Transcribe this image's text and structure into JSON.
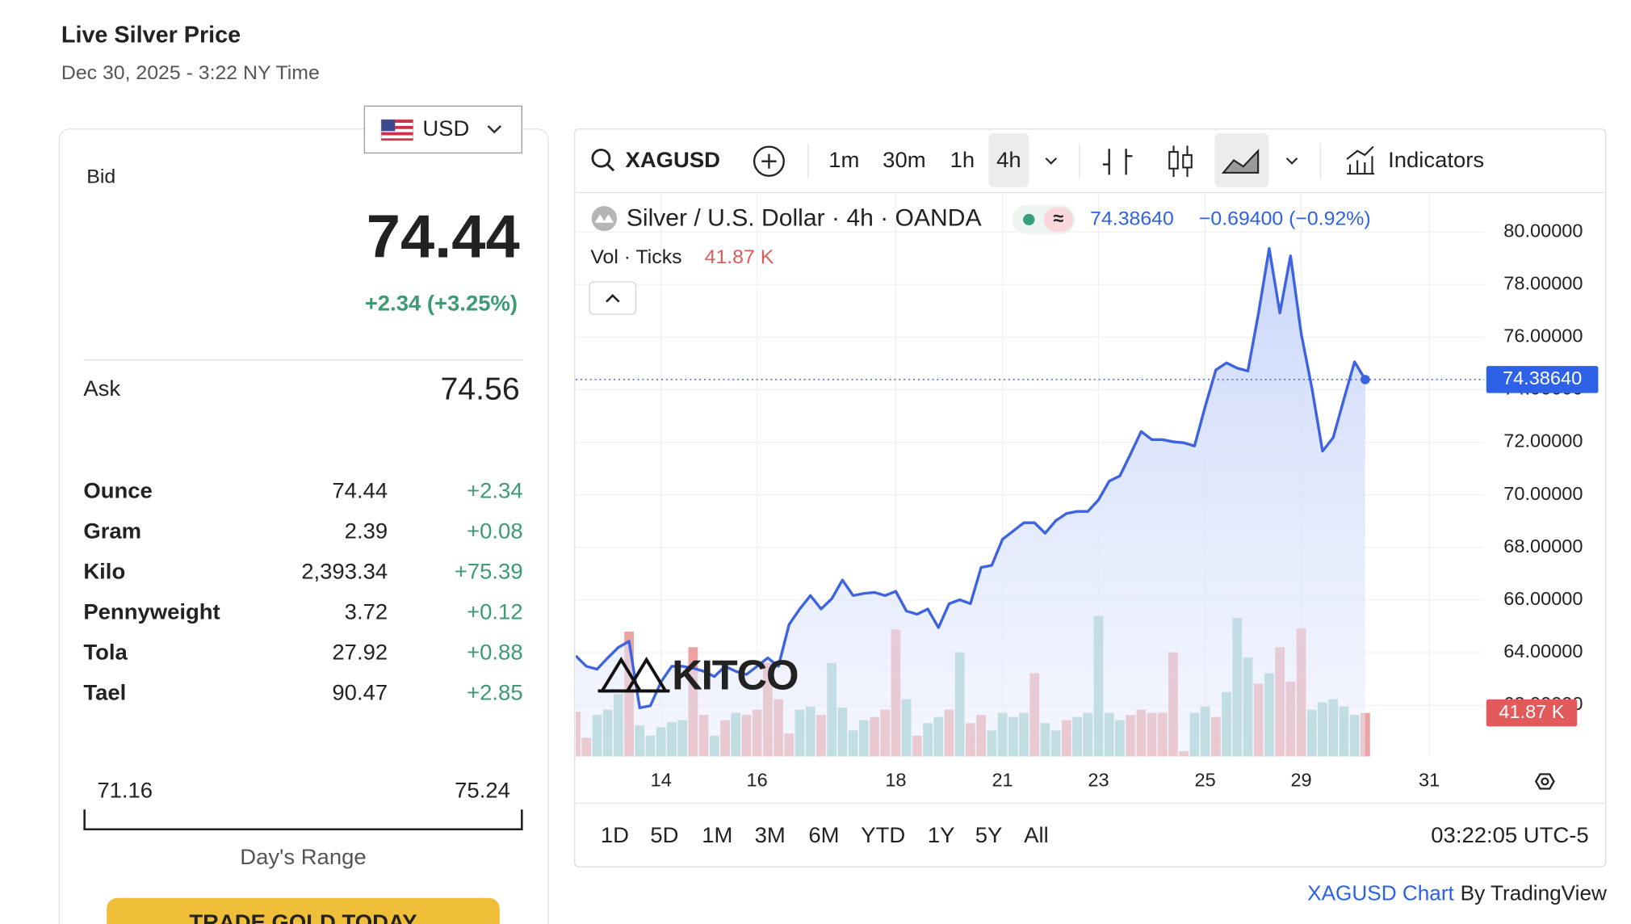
{
  "header": {
    "title": "Live Silver Price",
    "timestamp": "Dec 30, 2025 - 3:22 NY Time"
  },
  "currency": "USD",
  "quote": {
    "bid_label": "Bid",
    "bid": "74.44",
    "change": "+2.34 (+3.25%)",
    "ask_label": "Ask",
    "ask": "74.56"
  },
  "units": [
    {
      "name": "Ounce",
      "price": "74.44",
      "change": "+2.34"
    },
    {
      "name": "Gram",
      "price": "2.39",
      "change": "+0.08"
    },
    {
      "name": "Kilo",
      "price": "2,393.34",
      "change": "+75.39"
    },
    {
      "name": "Pennyweight",
      "price": "3.72",
      "change": "+0.12"
    },
    {
      "name": "Tola",
      "price": "27.92",
      "change": "+0.88"
    },
    {
      "name": "Tael",
      "price": "90.47",
      "change": "+2.85"
    }
  ],
  "range": {
    "low": "71.16",
    "high": "75.24",
    "label": "Day's Range"
  },
  "cta": "TRADE GOLD TODAY",
  "toolbar": {
    "symbol": "XAGUSD",
    "intervals": [
      "1m",
      "30m",
      "1h",
      "4h"
    ],
    "indicators": "Indicators"
  },
  "watermark": "KITCO",
  "chart_data": {
    "type": "line",
    "title": "Silver / U.S. Dollar · 4h · OANDA",
    "last_label": "74.38640",
    "change_label": "−0.69400 (−0.92%)",
    "color": "#3e63e0",
    "categories": [
      null,
      null,
      null,
      null,
      null,
      null,
      null,
      null,
      "14",
      null,
      null,
      null,
      null,
      null,
      null,
      null,
      null,
      "16",
      null,
      null,
      null,
      null,
      null,
      null,
      null,
      null,
      null,
      null,
      null,
      null,
      "18",
      null,
      null,
      null,
      null,
      null,
      null,
      null,
      null,
      null,
      "21",
      null,
      null,
      null,
      null,
      null,
      null,
      null,
      null,
      "23",
      null,
      null,
      null,
      null,
      null,
      null,
      null,
      null,
      null,
      "25",
      null,
      null,
      null,
      null,
      null,
      null,
      null,
      null,
      "29",
      null,
      null,
      null,
      null,
      null,
      null,
      null,
      null,
      null,
      null,
      null,
      "31"
    ],
    "values": [
      63.88,
      63.48,
      63.37,
      63.8,
      64.2,
      64.43,
      61.9,
      61.98,
      62.89,
      63.48,
      63.48,
      63.41,
      63.29,
      63.09,
      63.48,
      63.29,
      63.17,
      63.48,
      63.8,
      63.48,
      65.07,
      65.66,
      66.17,
      65.66,
      66.05,
      66.76,
      66.17,
      66.25,
      66.29,
      66.17,
      66.33,
      65.58,
      65.46,
      65.66,
      64.95,
      65.86,
      66.01,
      65.86,
      67.24,
      67.32,
      68.31,
      68.62,
      68.94,
      68.94,
      68.54,
      69.02,
      69.29,
      69.37,
      69.37,
      69.81,
      70.52,
      70.72,
      71.55,
      72.41,
      72.1,
      72.1,
      72.02,
      71.98,
      71.86,
      73.36,
      74.75,
      75.02,
      74.82,
      74.71,
      76.92,
      79.37,
      76.92,
      79.09,
      76.13,
      74.07,
      71.66,
      72.18,
      73.64,
      75.06,
      74.3864,
      null,
      null,
      null,
      null,
      null,
      null
    ],
    "ylim": [
      60.05,
      81.46
    ],
    "yticks": [
      {
        "value": 62,
        "label": "62.00000"
      },
      {
        "value": 64,
        "label": "64.00000"
      },
      {
        "value": 66,
        "label": "66.00000"
      },
      {
        "value": 68,
        "label": "68.00000"
      },
      {
        "value": 70,
        "label": "70.00000"
      },
      {
        "value": 72,
        "label": "72.00000"
      },
      {
        "value": 74,
        "label": "74.00000"
      },
      {
        "value": 76,
        "label": "76.00000"
      },
      {
        "value": 78,
        "label": "78.00000"
      },
      {
        "value": 80,
        "label": "80.00000"
      }
    ],
    "grid": true,
    "volume": {
      "label": "Vol · Ticks",
      "last_label": "41.87 K",
      "ylim": [
        0,
        150
      ],
      "values": [
        43,
        18,
        40,
        45,
        60,
        120,
        30,
        20,
        28,
        33,
        35,
        105,
        40,
        20,
        35,
        42,
        40,
        45,
        90,
        55,
        22,
        45,
        48,
        40,
        90,
        47,
        25,
        35,
        38,
        45,
        122,
        55,
        20,
        32,
        38,
        45,
        100,
        32,
        40,
        25,
        42,
        38,
        42,
        80,
        32,
        25,
        35,
        38,
        42,
        135,
        42,
        35,
        40,
        45,
        42,
        42,
        100,
        5,
        42,
        48,
        38,
        62,
        133,
        95,
        70,
        80,
        105,
        72,
        123,
        45,
        52,
        55,
        48,
        40,
        41.87,
        null,
        null,
        null,
        null,
        null,
        null
      ],
      "colors": [
        "#eba3a3",
        "#eba3a3",
        "#98cdc6",
        "#98cdc6",
        "#98cdc6",
        "#eba3a3",
        "#98cdc6",
        "#98cdc6",
        "#98cdc6",
        "#98cdc6",
        "#98cdc6",
        "#eba3a3",
        "#eba3a3",
        "#98cdc6",
        "#eba3a3",
        "#98cdc6",
        "#eba3a3",
        "#eba3a3",
        "#eba3a3",
        "#eba3a3",
        "#eba3a3",
        "#98cdc6",
        "#98cdc6",
        "#eba3a3",
        "#98cdc6",
        "#98cdc6",
        "#98cdc6",
        "#98cdc6",
        "#eba3a3",
        "#eba3a3",
        "#eba3a3",
        "#98cdc6",
        "#eba3a3",
        "#98cdc6",
        "#98cdc6",
        "#eba3a3",
        "#98cdc6",
        "#eba3a3",
        "#eba3a3",
        "#98cdc6",
        "#98cdc6",
        "#98cdc6",
        "#98cdc6",
        "#eba3a3",
        "#98cdc6",
        "#98cdc6",
        "#eba3a3",
        "#98cdc6",
        "#98cdc6",
        "#98cdc6",
        "#98cdc6",
        "#98cdc6",
        "#eba3a3",
        "#eba3a3",
        "#eba3a3",
        "#eba3a3",
        "#eba3a3",
        "#eba3a3",
        "#98cdc6",
        "#98cdc6",
        "#eba3a3",
        "#98cdc6",
        "#98cdc6",
        "#98cdc6",
        "#eba3a3",
        "#98cdc6",
        "#eba3a3",
        "#eba3a3",
        "#eba3a3",
        "#98cdc6",
        "#98cdc6",
        "#98cdc6",
        "#98cdc6",
        "#98cdc6",
        "#eba3a3"
      ]
    }
  },
  "ranges": [
    "1D",
    "5D",
    "1M",
    "3M",
    "6M",
    "YTD",
    "1Y",
    "5Y",
    "All"
  ],
  "clock": "03:22:05 UTC-5",
  "footer": {
    "link": "XAGUSD Chart",
    "by": "By TradingView"
  }
}
